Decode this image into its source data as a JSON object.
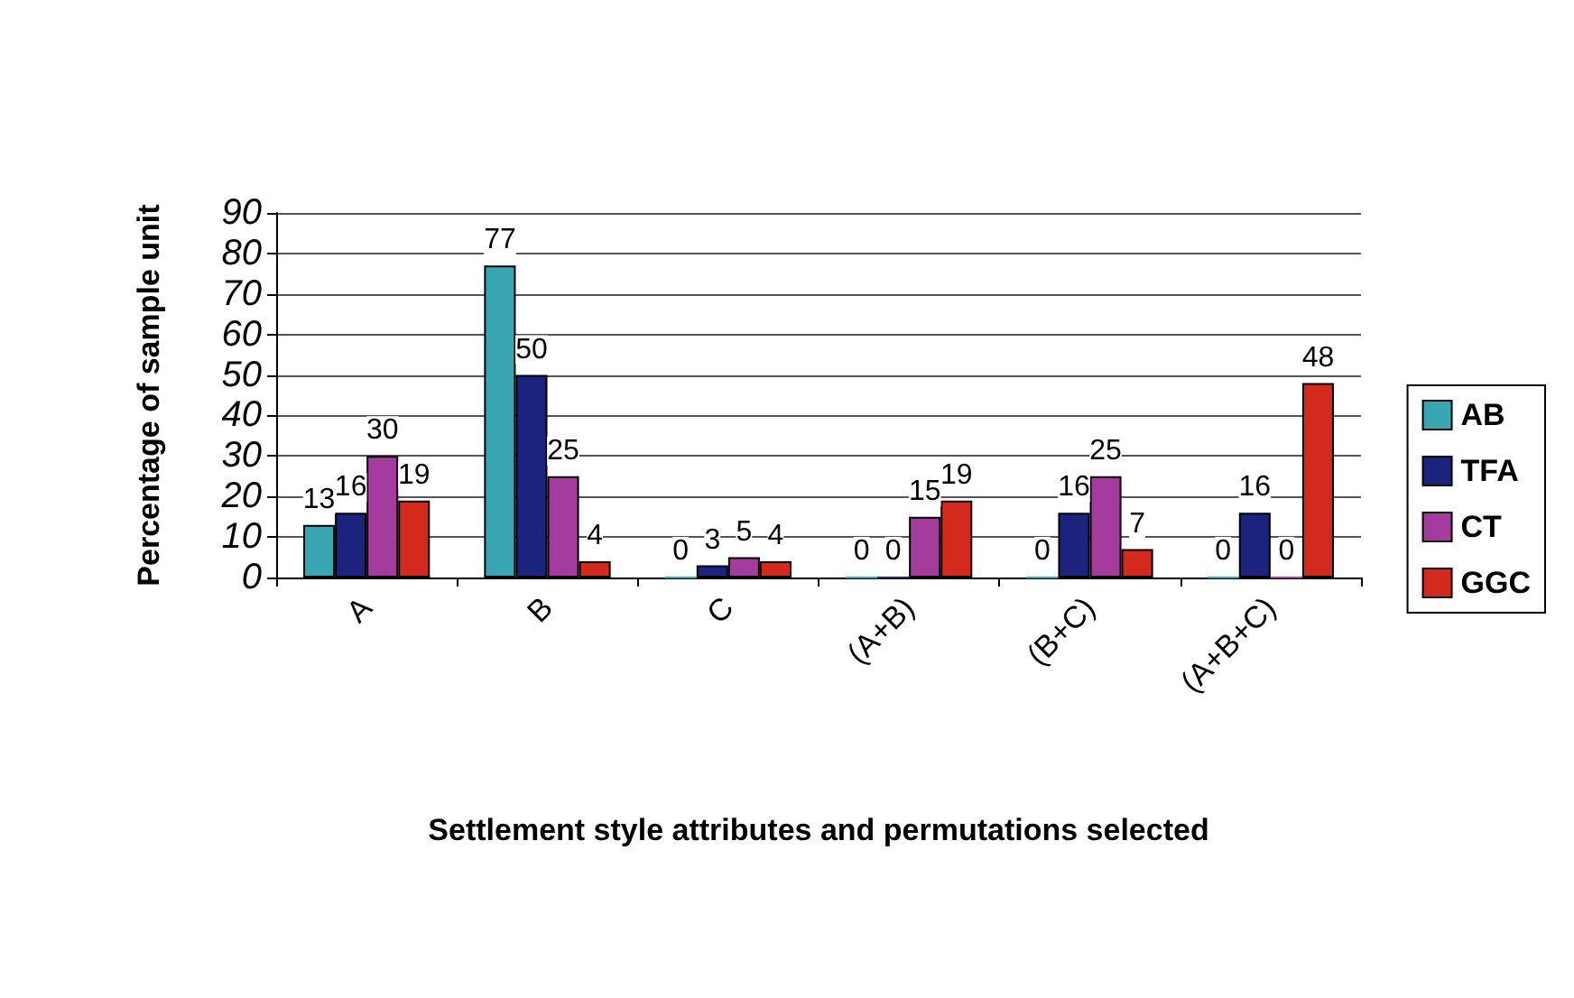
{
  "chart_data": {
    "type": "bar",
    "xlabel": "Settlement style attributes and permutations selected",
    "ylabel": "Percentage of sample unit",
    "categories": [
      "A",
      "B",
      "C",
      "(A+B)",
      "(B+C)",
      "(A+B+C)"
    ],
    "series": [
      {
        "name": "AB",
        "color": "#3aa6b4",
        "values": [
          13,
          77,
          0,
          0,
          0,
          0
        ]
      },
      {
        "name": "TFA",
        "color": "#1c237e",
        "values": [
          16,
          50,
          3,
          0,
          16,
          16
        ]
      },
      {
        "name": "CT",
        "color": "#a43c9e",
        "values": [
          30,
          25,
          5,
          15,
          25,
          0
        ]
      },
      {
        "name": "GGC",
        "color": "#d42a1e",
        "values": [
          19,
          4,
          4,
          19,
          7,
          48
        ]
      }
    ],
    "ylim": [
      0,
      90
    ],
    "yticks": [
      0,
      10,
      20,
      30,
      40,
      50,
      60,
      70,
      80,
      90
    ],
    "grid": "y",
    "legend": "right",
    "data_labels": true
  }
}
